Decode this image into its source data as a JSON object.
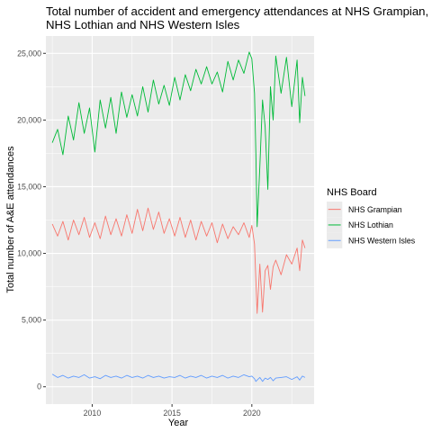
{
  "chart_data": {
    "type": "line",
    "title_lines": [
      "Total number of accident and emergency attendances at NHS Grampian,",
      "NHS Lothian and NHS Western Isles"
    ],
    "xlabel": "Year",
    "ylabel": "Total number of A&E attendances",
    "xlim": [
      2007.1,
      2023.9
    ],
    "ylim": [
      -1300,
      26300
    ],
    "x_ticks": [
      2010,
      2015,
      2020
    ],
    "x_tick_labels": [
      "2010",
      "2015",
      "2020"
    ],
    "y_ticks": [
      0,
      5000,
      10000,
      15000,
      20000,
      25000
    ],
    "y_tick_labels": [
      "0",
      "5,000",
      "10,000",
      "15,000",
      "20,000",
      "25,000"
    ],
    "grid": true,
    "legend": {
      "title": "NHS Board",
      "placement": "right"
    },
    "series": [
      {
        "name": "NHS Grampian",
        "color": "#F8766D",
        "x": [
          2007.5,
          2007.833,
          2008.167,
          2008.5,
          2008.833,
          2009.167,
          2009.5,
          2009.833,
          2010.167,
          2010.5,
          2010.833,
          2011.167,
          2011.5,
          2011.833,
          2012.167,
          2012.5,
          2012.833,
          2013.167,
          2013.5,
          2013.833,
          2014.167,
          2014.5,
          2014.833,
          2015.167,
          2015.5,
          2015.833,
          2016.167,
          2016.5,
          2016.833,
          2017.167,
          2017.5,
          2017.833,
          2018.167,
          2018.5,
          2018.833,
          2019.167,
          2019.5,
          2019.833,
          2020.0,
          2020.167,
          2020.25,
          2020.333,
          2020.5,
          2020.667,
          2020.833,
          2021.0,
          2021.167,
          2021.333,
          2021.5,
          2021.833,
          2022.167,
          2022.5,
          2022.833,
          2023.0,
          2023.167,
          2023.333
        ],
        "values": [
          12200,
          11300,
          12400,
          11000,
          12500,
          11400,
          12700,
          11200,
          12300,
          11100,
          12800,
          11400,
          12600,
          11300,
          12900,
          11500,
          13300,
          11700,
          13400,
          11800,
          13100,
          11500,
          12600,
          11300,
          12700,
          11200,
          12500,
          11000,
          12400,
          11300,
          12300,
          10800,
          12200,
          11100,
          12000,
          11400,
          12300,
          11200,
          12100,
          10700,
          8000,
          5500,
          9200,
          5600,
          8700,
          9100,
          7300,
          9000,
          9500,
          8400,
          9900,
          9200,
          10400,
          8700,
          11000,
          10400
        ]
      },
      {
        "name": "NHS Lothian",
        "color": "#00BA38",
        "x": [
          2007.5,
          2007.833,
          2008.167,
          2008.5,
          2008.833,
          2009.167,
          2009.5,
          2009.833,
          2010.167,
          2010.5,
          2010.833,
          2011.167,
          2011.5,
          2011.833,
          2012.167,
          2012.5,
          2012.833,
          2013.167,
          2013.5,
          2013.833,
          2014.167,
          2014.5,
          2014.833,
          2015.167,
          2015.5,
          2015.833,
          2016.167,
          2016.5,
          2016.833,
          2017.167,
          2017.5,
          2017.833,
          2018.167,
          2018.5,
          2018.833,
          2019.167,
          2019.5,
          2019.833,
          2020.0,
          2020.167,
          2020.25,
          2020.333,
          2020.5,
          2020.667,
          2020.833,
          2021.0,
          2021.167,
          2021.333,
          2021.5,
          2021.833,
          2022.167,
          2022.5,
          2022.833,
          2023.0,
          2023.167,
          2023.333
        ],
        "values": [
          18300,
          19300,
          17400,
          20300,
          18500,
          21300,
          19000,
          20900,
          17600,
          21500,
          19400,
          21700,
          19000,
          22100,
          20200,
          21900,
          20300,
          22500,
          20600,
          23000,
          21200,
          22600,
          21100,
          23200,
          21500,
          23400,
          22200,
          23800,
          22700,
          24000,
          22700,
          23600,
          22100,
          24400,
          23000,
          24500,
          23500,
          25100,
          24600,
          22000,
          17500,
          12000,
          16500,
          21500,
          19500,
          14800,
          22500,
          20000,
          24800,
          22000,
          24700,
          21000,
          24500,
          19800,
          23200,
          21800
        ]
      },
      {
        "name": "NHS Western Isles",
        "color": "#619CFF",
        "x": [
          2007.5,
          2007.833,
          2008.167,
          2008.5,
          2008.833,
          2009.167,
          2009.5,
          2009.833,
          2010.167,
          2010.5,
          2010.833,
          2011.167,
          2011.5,
          2011.833,
          2012.167,
          2012.5,
          2012.833,
          2013.167,
          2013.5,
          2013.833,
          2014.167,
          2014.5,
          2014.833,
          2015.167,
          2015.5,
          2015.833,
          2016.167,
          2016.5,
          2016.833,
          2017.167,
          2017.5,
          2017.833,
          2018.167,
          2018.5,
          2018.833,
          2019.167,
          2019.5,
          2019.833,
          2020.0,
          2020.167,
          2020.25,
          2020.333,
          2020.5,
          2020.667,
          2020.833,
          2021.0,
          2021.167,
          2021.333,
          2021.5,
          2021.833,
          2022.167,
          2022.5,
          2022.833,
          2023.0,
          2023.167,
          2023.333
        ],
        "values": [
          950,
          700,
          850,
          650,
          800,
          700,
          900,
          650,
          750,
          600,
          850,
          700,
          800,
          650,
          850,
          700,
          800,
          650,
          850,
          700,
          800,
          650,
          750,
          700,
          850,
          650,
          800,
          700,
          850,
          650,
          800,
          700,
          850,
          650,
          800,
          700,
          900,
          750,
          800,
          600,
          400,
          500,
          700,
          400,
          650,
          550,
          700,
          450,
          650,
          700,
          750,
          550,
          750,
          500,
          800,
          700
        ]
      }
    ]
  }
}
